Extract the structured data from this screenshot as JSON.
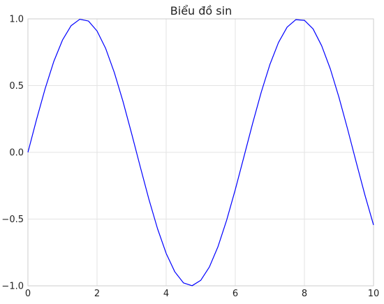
{
  "chart_data": {
    "type": "line",
    "title": "Biểu đồ sin",
    "xlabel": "",
    "ylabel": "",
    "xlim": [
      0,
      10
    ],
    "ylim": [
      -1.0,
      1.0
    ],
    "x_ticks": [
      0,
      2,
      4,
      6,
      8,
      10
    ],
    "x_tick_labels": [
      "0",
      "2",
      "4",
      "6",
      "8",
      "10"
    ],
    "y_ticks": [
      -1.0,
      -0.5,
      0.0,
      0.5,
      1.0
    ],
    "y_tick_labels": [
      "−1.0",
      "−0.5",
      "0.0",
      "0.5",
      "1.0"
    ],
    "grid": true,
    "series": [
      {
        "function": "sin(x)",
        "color": "#0000ff",
        "x": [
          0,
          0.25,
          0.5,
          0.75,
          1,
          1.25,
          1.5,
          1.75,
          2,
          2.25,
          2.5,
          2.75,
          3,
          3.25,
          3.5,
          3.75,
          4,
          4.25,
          4.5,
          4.75,
          5,
          5.25,
          5.5,
          5.75,
          6,
          6.25,
          6.5,
          6.75,
          7,
          7.25,
          7.5,
          7.75,
          8,
          8.25,
          8.5,
          8.75,
          9,
          9.25,
          9.5,
          9.75,
          10
        ],
        "y": [
          0,
          0.247,
          0.479,
          0.682,
          0.841,
          0.949,
          0.997,
          0.984,
          0.909,
          0.778,
          0.598,
          0.382,
          0.141,
          -0.108,
          -0.351,
          -0.572,
          -0.757,
          -0.895,
          -0.978,
          -0.999,
          -0.959,
          -0.859,
          -0.706,
          -0.508,
          -0.279,
          -0.033,
          0.215,
          0.45,
          0.657,
          0.823,
          0.938,
          0.994,
          0.989,
          0.925,
          0.798,
          0.625,
          0.412,
          0.174,
          -0.075,
          -0.319,
          -0.544
        ]
      }
    ]
  }
}
